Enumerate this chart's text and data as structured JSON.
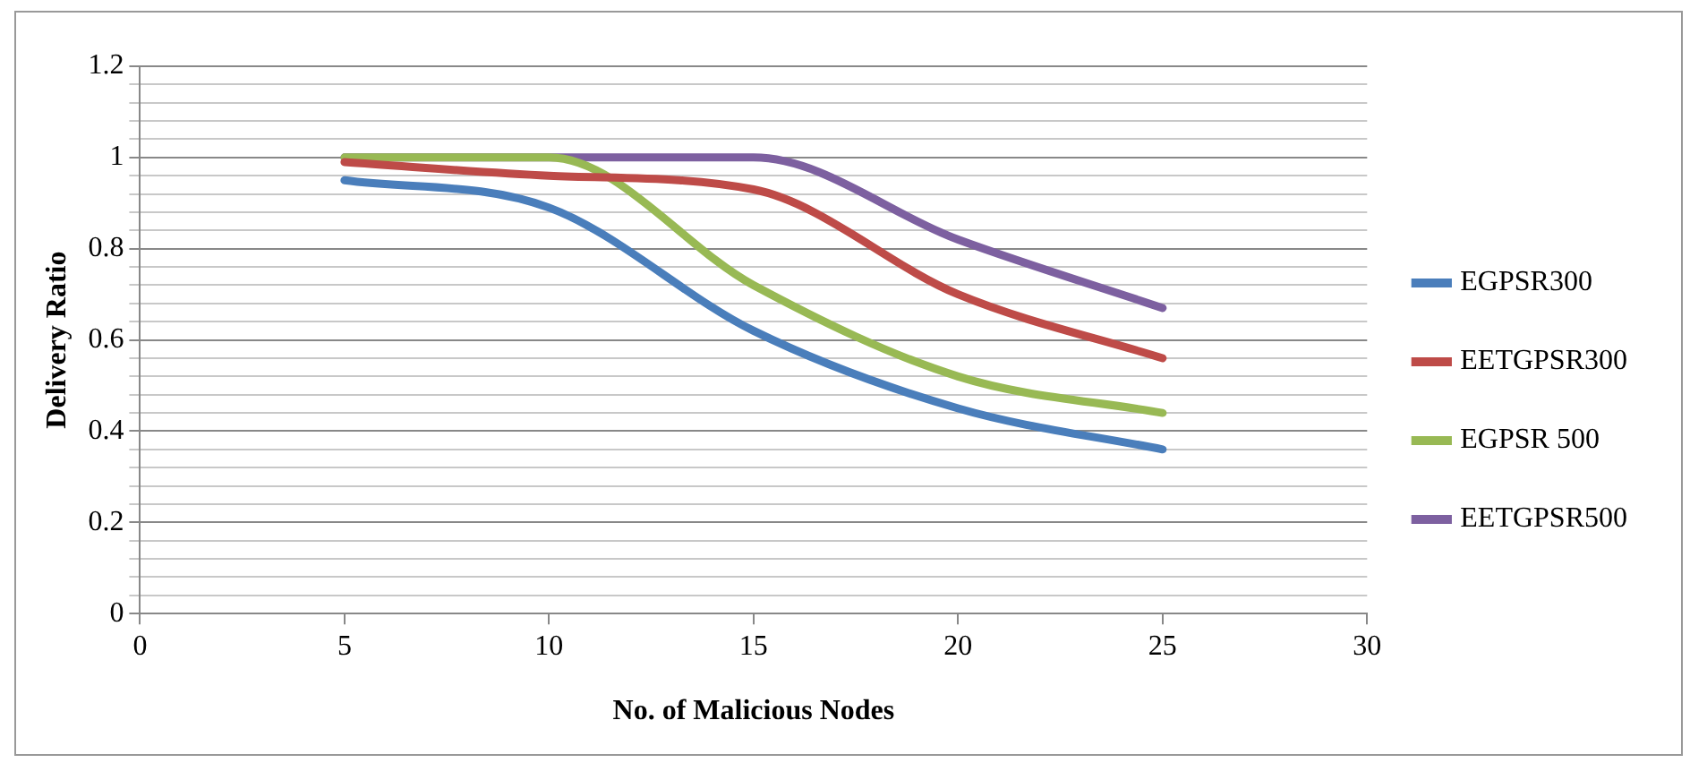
{
  "chart_data": {
    "type": "line",
    "xlabel": "No. of Malicious Nodes",
    "ylabel": "Delivery Ratio",
    "x": [
      5,
      10,
      15,
      20,
      25
    ],
    "series": [
      {
        "name": "EGPSR300",
        "color": "#4a7ebb",
        "values": [
          0.95,
          0.89,
          0.62,
          0.45,
          0.36
        ]
      },
      {
        "name": "EETGPSR300",
        "color": "#be4b48",
        "values": [
          0.99,
          0.96,
          0.93,
          0.7,
          0.56
        ]
      },
      {
        "name": "EGPSR 500",
        "color": "#98b954",
        "values": [
          1.0,
          1.0,
          0.72,
          0.52,
          0.44
        ]
      },
      {
        "name": "EETGPSR500",
        "color": "#7d60a0",
        "values": [
          1.0,
          1.0,
          1.0,
          0.82,
          0.67
        ]
      }
    ],
    "xlim": [
      0,
      30
    ],
    "xticks": [
      0,
      5,
      10,
      15,
      20,
      25,
      30
    ],
    "ylim": [
      0,
      1.2
    ],
    "yticks": [
      0,
      {
        "value": 0.04,
        "label": null
      },
      {
        "value": 0.08,
        "label": null
      },
      {
        "value": 0.12,
        "label": null
      },
      {
        "value": 0.16,
        "label": null
      },
      0.2,
      {
        "value": 0.24,
        "label": null
      },
      {
        "value": 0.28,
        "label": null
      },
      {
        "value": 0.32,
        "label": null
      },
      {
        "value": 0.36,
        "label": null
      },
      0.4,
      {
        "value": 0.44,
        "label": null
      },
      {
        "value": 0.48,
        "label": null
      },
      {
        "value": 0.52,
        "label": null
      },
      {
        "value": 0.56,
        "label": null
      },
      0.6,
      {
        "value": 0.64,
        "label": null
      },
      {
        "value": 0.68,
        "label": null
      },
      {
        "value": 0.72,
        "label": null
      },
      {
        "value": 0.76,
        "label": null
      },
      0.8,
      {
        "value": 0.84,
        "label": null
      },
      {
        "value": 0.88,
        "label": null
      },
      {
        "value": 0.92,
        "label": null
      },
      {
        "value": 0.96,
        "label": null
      },
      1,
      {
        "value": 1.04,
        "label": null
      },
      {
        "value": 1.08,
        "label": null
      },
      {
        "value": 1.12,
        "label": null
      },
      {
        "value": 1.16,
        "label": null
      },
      1.2
    ],
    "grid": "y",
    "legend": "right",
    "marker": "none",
    "line_style": "solid"
  }
}
